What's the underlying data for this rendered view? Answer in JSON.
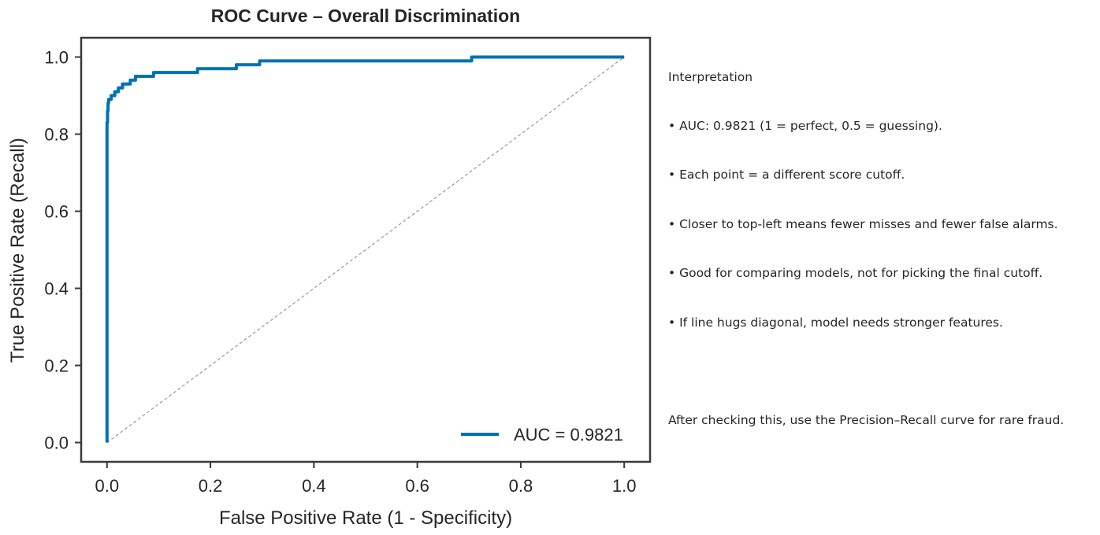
{
  "chart_data": {
    "type": "line",
    "title": "ROC Curve – Overall Discrimination",
    "xlabel": "False Positive Rate (1 - Specificity)",
    "ylabel": "True Positive Rate (Recall)",
    "xlim": [
      -0.05,
      1.05
    ],
    "ylim": [
      -0.05,
      1.05
    ],
    "xticks": [
      "0.0",
      "0.2",
      "0.4",
      "0.6",
      "0.8",
      "1.0"
    ],
    "yticks": [
      "0.0",
      "0.2",
      "0.4",
      "0.6",
      "0.8",
      "1.0"
    ],
    "grid": false,
    "legend_position": "lower-right",
    "series": [
      {
        "name": "AUC = 0.9821",
        "color": "#0072B2",
        "x": [
          0.0,
          0.0,
          0.001,
          0.001,
          0.002,
          0.002,
          0.003,
          0.003,
          0.008,
          0.008,
          0.015,
          0.015,
          0.022,
          0.022,
          0.03,
          0.03,
          0.045,
          0.045,
          0.055,
          0.055,
          0.09,
          0.09,
          0.175,
          0.175,
          0.25,
          0.25,
          0.295,
          0.295,
          0.705,
          0.705,
          1.0
        ],
        "y": [
          0.0,
          0.83,
          0.83,
          0.86,
          0.86,
          0.88,
          0.88,
          0.89,
          0.89,
          0.9,
          0.9,
          0.91,
          0.91,
          0.92,
          0.92,
          0.93,
          0.93,
          0.94,
          0.94,
          0.95,
          0.95,
          0.96,
          0.96,
          0.97,
          0.97,
          0.98,
          0.98,
          0.99,
          0.99,
          1.0,
          1.0
        ]
      },
      {
        "name": "",
        "color": "#999999",
        "style": "dashed",
        "x": [
          0.0,
          1.0
        ],
        "y": [
          0.0,
          1.0
        ]
      }
    ],
    "legend": [
      "AUC = 0.9821"
    ]
  },
  "notes": {
    "heading": "Interpretation",
    "bullets": [
      "• AUC: 0.9821 (1 = perfect, 0.5 = guessing).",
      "• Each point = a different score cutoff.",
      "• Closer to top-left means fewer misses and fewer false alarms.",
      "• Good for comparing models, not for picking the final cutoff.",
      "• If line hugs diagonal, model needs stronger features."
    ],
    "footer": "After checking this, use the Precision–Recall curve for rare fraud."
  }
}
